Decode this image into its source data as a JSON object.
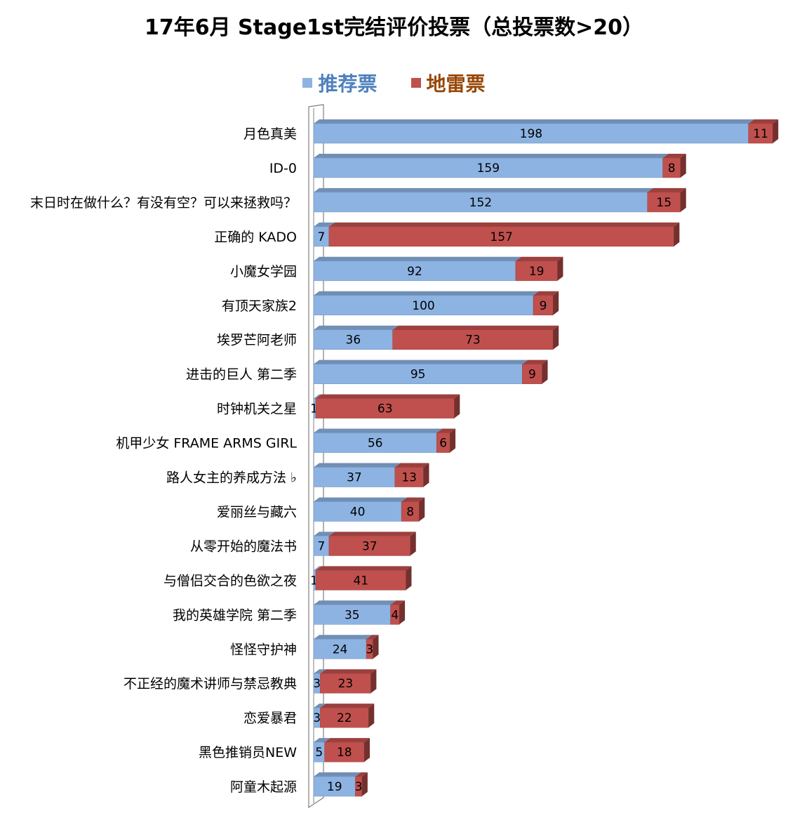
{
  "chart_data": {
    "type": "bar",
    "orientation": "horizontal",
    "stacked": true,
    "title": "17年6月 Stage1st完结评价投票（总投票数>20）",
    "legend_position": "top",
    "grid": false,
    "categories": [
      "月色真美",
      "ID-0",
      "末日时在做什么？有没有空？可以来拯救吗？",
      "正确的 KADO",
      "小魔女学园",
      "有顶天家族2",
      "埃罗芒阿老师",
      "进击的巨人 第二季",
      "时钟机关之星",
      "机甲少女 FRAME ARMS GIRL",
      "路人女主的养成方法 ♭",
      "爱丽丝与藏六",
      "从零开始的魔法书",
      "与僧侣交合的色欲之夜",
      "我的英雄学院 第二季",
      "怪怪守护神",
      "不正经的魔术讲师与禁忌教典",
      "恋爱暴君",
      "黑色推销员NEW",
      "阿童木起源"
    ],
    "series": [
      {
        "name": "推荐票",
        "color": "#8db3e2",
        "values": [
          198,
          159,
          152,
          7,
          92,
          100,
          36,
          95,
          1,
          56,
          37,
          40,
          7,
          1,
          35,
          24,
          3,
          3,
          5,
          19
        ]
      },
      {
        "name": "地雷票",
        "color": "#c0504d",
        "values": [
          11,
          8,
          15,
          157,
          19,
          9,
          73,
          9,
          63,
          6,
          13,
          8,
          37,
          41,
          4,
          3,
          23,
          22,
          18,
          3
        ]
      }
    ],
    "xlim": [
      0,
      209
    ]
  },
  "colors": {
    "legend_text_0": "#4f81bd",
    "legend_text_1": "#974706",
    "axis": "#808080"
  }
}
